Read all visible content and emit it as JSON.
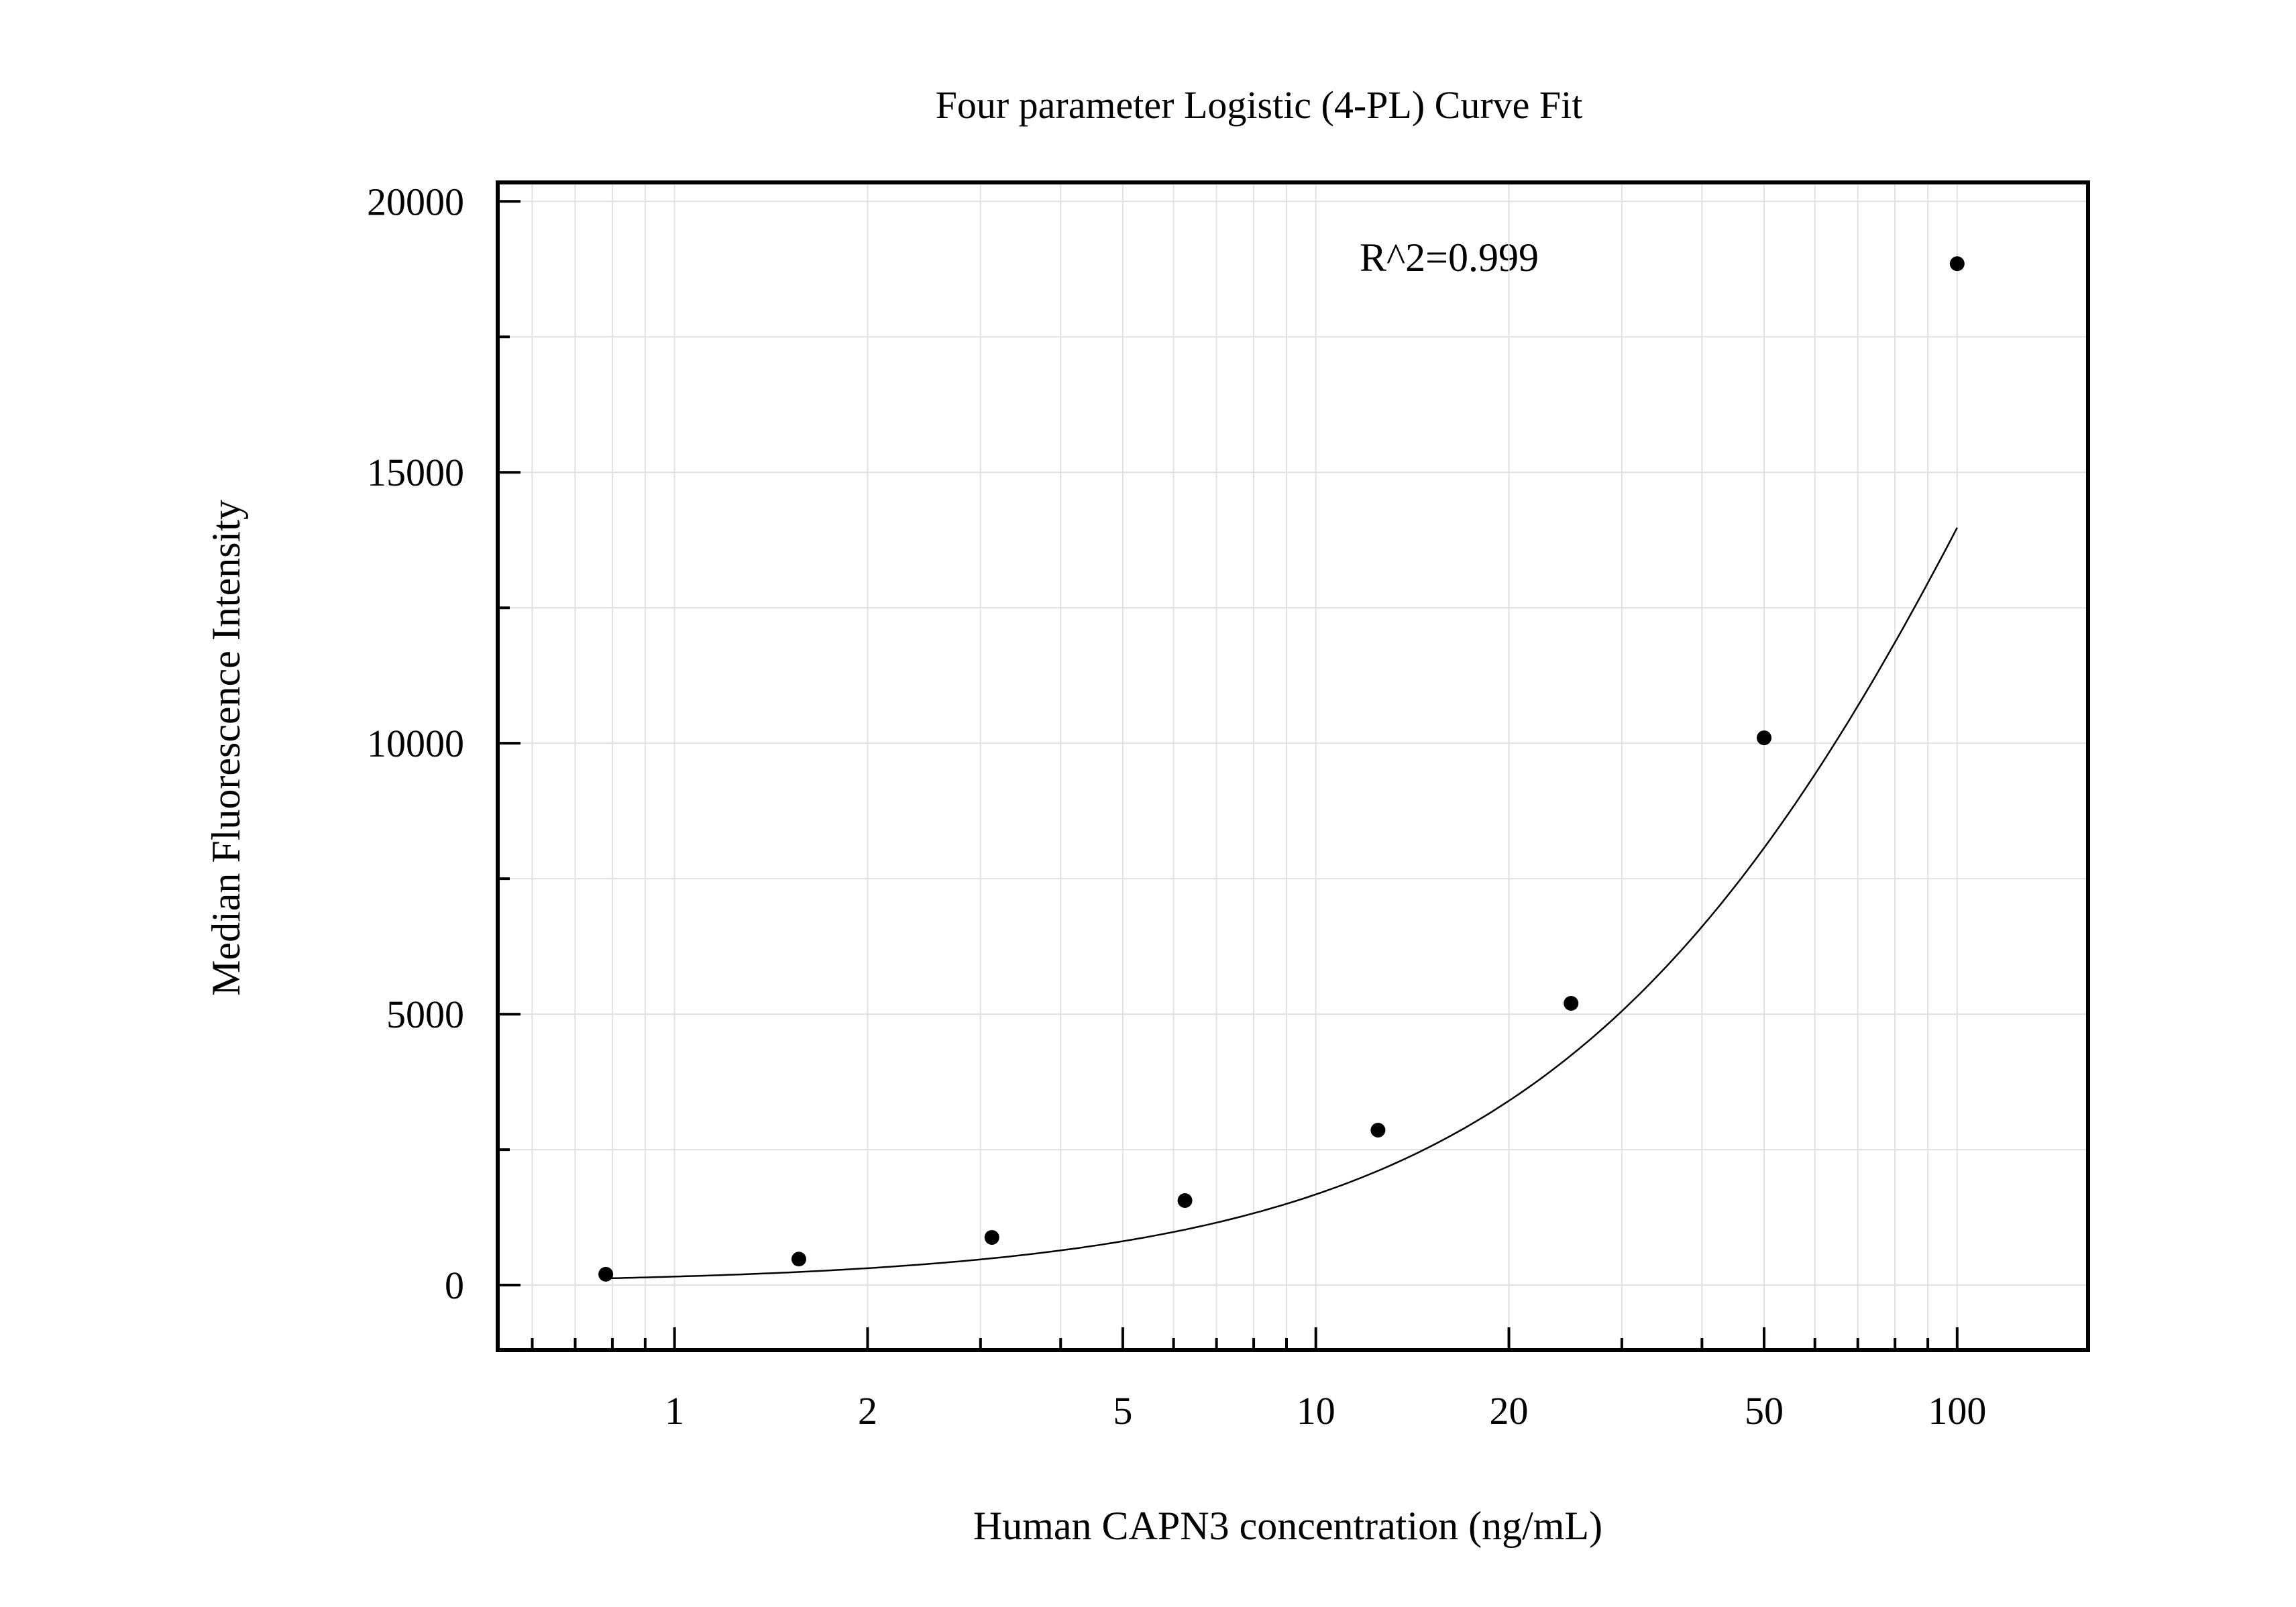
{
  "chart_data": {
    "type": "scatter",
    "title": "Four parameter Logistic (4-PL) Curve Fit",
    "xlabel": "Human CAPN3 concentration (ng/mL)",
    "ylabel": "Median Fluorescence Intensity",
    "x_scale": "log",
    "xlim": [
      0.53,
      160
    ],
    "ylim": [
      -1200,
      20350
    ],
    "x_ticks": [
      1,
      2,
      5,
      10,
      20,
      50,
      100
    ],
    "x_tick_labels": [
      "1",
      "2",
      "5",
      "10",
      "20",
      "50",
      "100"
    ],
    "y_ticks": [
      0,
      5000,
      10000,
      15000,
      20000
    ],
    "y_tick_labels": [
      "0",
      "5000",
      "10000",
      "15000",
      "20000"
    ],
    "grid": true,
    "legend": "none",
    "annotation": "R^2=0.999",
    "series": [
      {
        "marker": "filled-circle",
        "color": "#000000",
        "x": [
          0.78125,
          1.5625,
          3.125,
          6.25,
          12.5,
          25,
          50,
          100
        ],
        "y": [
          200,
          480,
          880,
          1560,
          2860,
          5200,
          10100,
          18850
        ]
      }
    ],
    "fit_curve": {
      "model": "4PL",
      "A": 20,
      "D": 39000,
      "C": 170,
      "B": 1.1
    }
  }
}
